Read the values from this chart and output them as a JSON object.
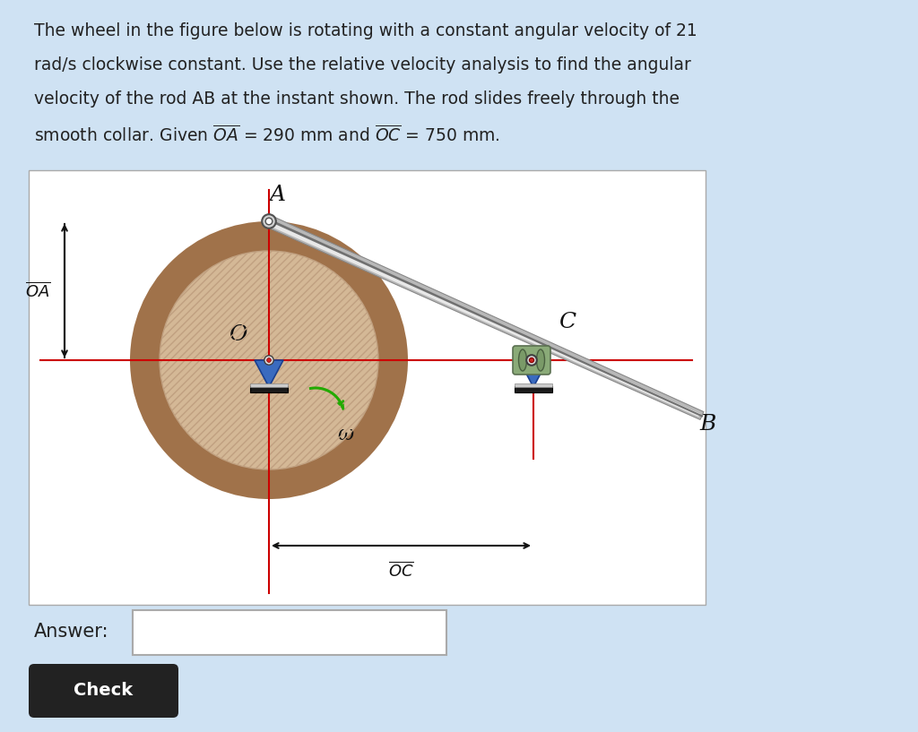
{
  "bg_color": "#cfe2f3",
  "white_box_color": "#ffffff",
  "wheel_fill_color": "#d4b896",
  "wheel_rim_color": "#a0724a",
  "red_line_color": "#cc0000",
  "green_arrow_color": "#22aa00",
  "O_label": "O",
  "A_label": "A",
  "B_label": "B",
  "C_label": "C",
  "OA_label": "$\\overline{OA}$",
  "OC_label": "$\\overline{OC}$",
  "omega_label": "ω",
  "answer_box_label": "Answer:",
  "check_button_label": "Check",
  "title_lines": [
    "The wheel in the figure below is rotating with a constant angular velocity of 21",
    "rad/s clockwise constant. Use the relative velocity analysis to find the angular",
    "velocity of the rod AB at the instant shown. The rod slides freely through the",
    "smooth collar. Given $\\overline{OA}$ = 290 mm and $\\overline{OC}$ = 750 mm."
  ]
}
